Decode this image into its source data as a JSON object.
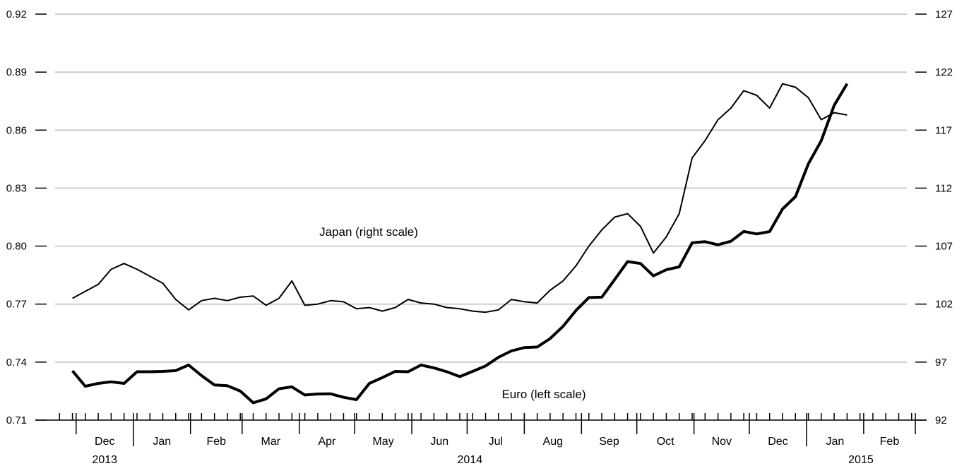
{
  "chart_data": {
    "type": "line",
    "title": "",
    "xlabel": "",
    "grid": true,
    "x_weeks_start": "2013-11-29",
    "x_weeks_interval_days": 7,
    "x_range": [
      "2013-11-15",
      "2015-03-01"
    ],
    "months": [
      "Dec",
      "Jan",
      "Feb",
      "Mar",
      "Apr",
      "May",
      "Jun",
      "Jul",
      "Aug",
      "Sep",
      "Oct",
      "Nov",
      "Dec",
      "Jan",
      "Feb"
    ],
    "years": [
      "2013",
      "2014",
      "2015"
    ],
    "left_axis": {
      "ylim": [
        0.71,
        0.92
      ],
      "ticks": [
        "0.71",
        "0.74",
        "0.77",
        "0.80",
        "0.83",
        "0.86",
        "0.89",
        "0.92"
      ]
    },
    "right_axis": {
      "ylim": [
        92,
        127
      ],
      "ticks": [
        "92",
        "97",
        "102",
        "107",
        "112",
        "117",
        "122",
        "127"
      ]
    },
    "annotations": [
      {
        "text": "Japan (right scale)",
        "series": "japan"
      },
      {
        "text": "Euro (left scale)",
        "series": "euro"
      }
    ],
    "series": [
      {
        "key": "japan",
        "axis": "right",
        "stroke": "#000000",
        "values": [
          102.5,
          103.1,
          103.7,
          105.0,
          105.5,
          105.0,
          104.4,
          103.8,
          102.4,
          101.5,
          102.3,
          102.5,
          102.3,
          102.6,
          102.7,
          101.9,
          102.5,
          104.0,
          101.9,
          102.0,
          102.3,
          102.2,
          101.6,
          101.7,
          101.4,
          101.7,
          102.4,
          102.1,
          102.0,
          101.7,
          101.6,
          101.4,
          101.3,
          101.5,
          102.4,
          102.2,
          102.1,
          103.2,
          104.0,
          105.3,
          107.0,
          108.4,
          109.5,
          109.8,
          108.7,
          106.4,
          107.8,
          109.8,
          114.6,
          116.1,
          117.9,
          118.9,
          120.4,
          120.0,
          118.9,
          121.0,
          120.7,
          119.8,
          117.9,
          118.5,
          118.3
        ]
      },
      {
        "key": "euro",
        "axis": "left",
        "stroke": "#000000",
        "values": [
          0.7355,
          0.7275,
          0.729,
          0.7298,
          0.729,
          0.735,
          0.735,
          0.7352,
          0.7356,
          0.7385,
          0.733,
          0.7282,
          0.7278,
          0.725,
          0.719,
          0.721,
          0.7262,
          0.7272,
          0.723,
          0.7235,
          0.7236,
          0.7218,
          0.7206,
          0.729,
          0.732,
          0.7352,
          0.735,
          0.7385,
          0.737,
          0.735,
          0.7325,
          0.7352,
          0.738,
          0.7425,
          0.7458,
          0.7475,
          0.7478,
          0.7522,
          0.7585,
          0.7667,
          0.7734,
          0.7736,
          0.7827,
          0.792,
          0.791,
          0.7846,
          0.7878,
          0.7893,
          0.8017,
          0.8023,
          0.8007,
          0.8025,
          0.8076,
          0.8063,
          0.8075,
          0.8192,
          0.8256,
          0.8425,
          0.8545,
          0.8728,
          0.884
        ]
      }
    ]
  }
}
